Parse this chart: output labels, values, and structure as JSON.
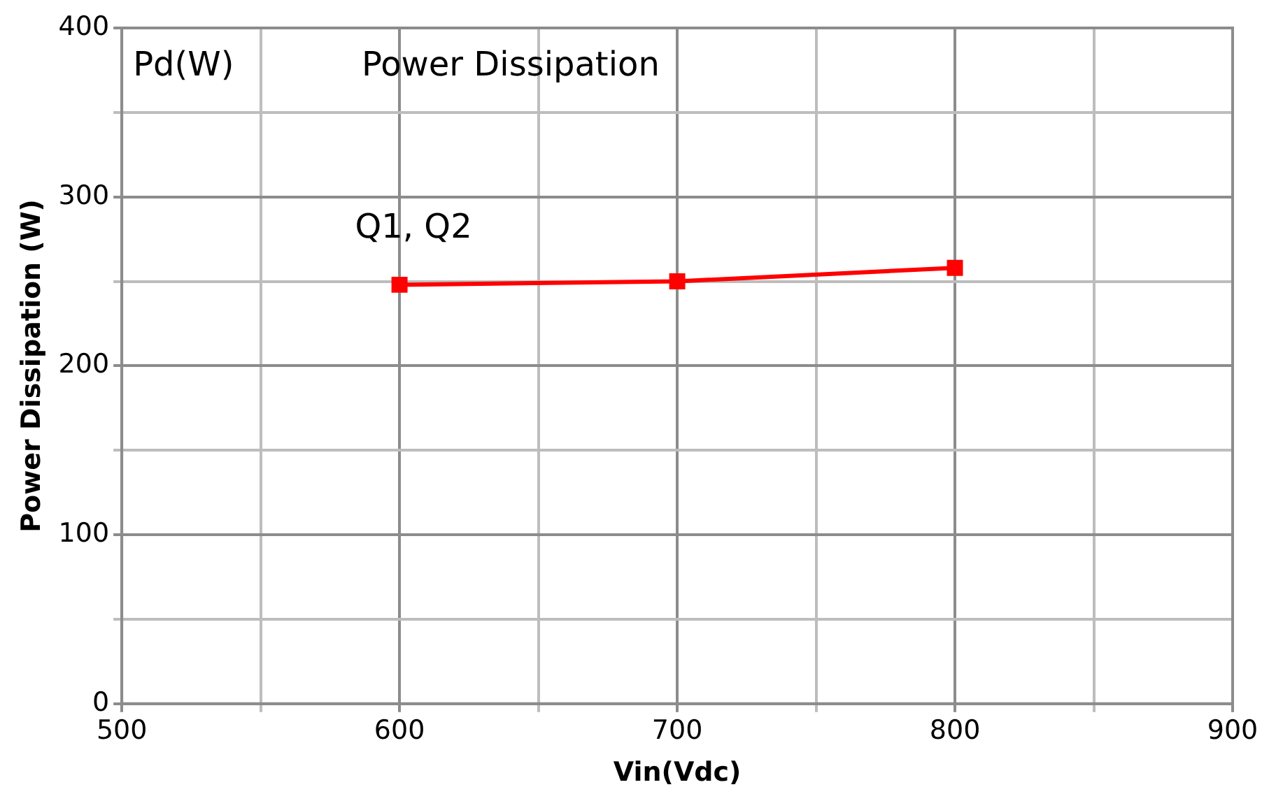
{
  "chart_data": {
    "type": "line",
    "title": "Power Dissipation",
    "xlabel": "Vin(Vdc)",
    "ylabel": "Power Dissipation (W)",
    "annotations": [
      "Pd(W)"
    ],
    "x": [
      600,
      700,
      800
    ],
    "series": [
      {
        "name": "Q1, Q2",
        "color": "#ff0000",
        "values": [
          248,
          250,
          258
        ]
      }
    ],
    "xlim": [
      500,
      900
    ],
    "xticks": [
      500,
      {
        "value": 550,
        "label": null
      },
      600,
      {
        "value": 650,
        "label": null
      },
      700,
      {
        "value": 750,
        "label": null
      },
      800,
      {
        "value": 850,
        "label": null
      },
      900
    ],
    "ylim": [
      0,
      400
    ],
    "yticks": [
      0,
      {
        "value": 50,
        "label": null
      },
      100,
      {
        "value": 150,
        "label": null
      },
      200,
      {
        "value": 250,
        "label": null
      },
      300,
      {
        "value": 350,
        "label": null
      },
      400
    ],
    "grid": true,
    "legend": false,
    "marker": "square",
    "line_style": "solid"
  }
}
